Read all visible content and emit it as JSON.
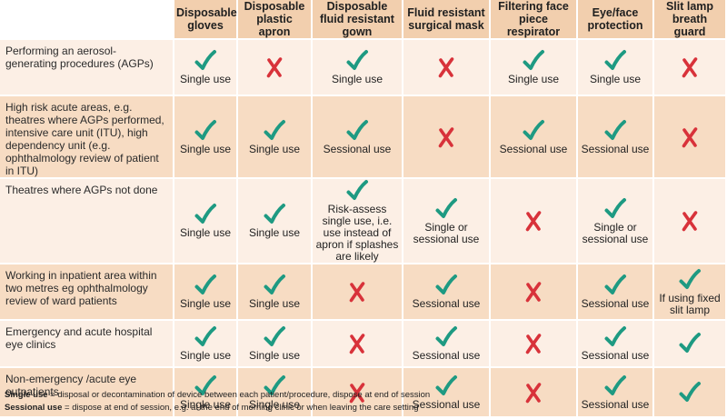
{
  "headers": [
    "Disposable gloves",
    "Disposable plastic apron",
    "Disposable fluid resistant gown",
    "Fluid resistant surgical mask",
    "Filtering face piece respirator",
    "Eye/face protection",
    "Slit lamp breath guard"
  ],
  "rows": [
    {
      "label": "Performing an aerosol-generating procedures (AGPs)",
      "cells": [
        {
          "mark": "tick",
          "note": "Single use"
        },
        {
          "mark": "cross",
          "note": ""
        },
        {
          "mark": "tick",
          "note": "Single use"
        },
        {
          "mark": "cross",
          "note": ""
        },
        {
          "mark": "tick",
          "note": "Single use"
        },
        {
          "mark": "tick",
          "note": "Single use"
        },
        {
          "mark": "cross",
          "note": ""
        }
      ]
    },
    {
      "label": "High risk acute areas, e.g. theatres where AGPs performed, intensive care unit (ITU), high dependency unit (e.g. ophthalmology review of patient in ITU)",
      "cells": [
        {
          "mark": "tick",
          "note": "Single use"
        },
        {
          "mark": "tick",
          "note": "Single use"
        },
        {
          "mark": "tick",
          "note": "Sessional use"
        },
        {
          "mark": "cross",
          "note": ""
        },
        {
          "mark": "tick",
          "note": "Sessional use"
        },
        {
          "mark": "tick",
          "note": "Sessional use"
        },
        {
          "mark": "cross",
          "note": ""
        }
      ]
    },
    {
      "label": "Theatres where AGPs not done",
      "cells": [
        {
          "mark": "tick",
          "note": "Single use"
        },
        {
          "mark": "tick",
          "note": "Single use"
        },
        {
          "mark": "tick",
          "note": "Risk-assess single use, i.e. use instead of apron if splashes are likely"
        },
        {
          "mark": "tick",
          "note": "Single or sessional use"
        },
        {
          "mark": "cross",
          "note": ""
        },
        {
          "mark": "tick",
          "note": "Single or sessional use"
        },
        {
          "mark": "cross",
          "note": ""
        }
      ]
    },
    {
      "label": "Working in inpatient area within two metres eg ophthalmology review of ward patients",
      "cells": [
        {
          "mark": "tick",
          "note": "Single use"
        },
        {
          "mark": "tick",
          "note": "Single use"
        },
        {
          "mark": "cross",
          "note": ""
        },
        {
          "mark": "tick",
          "note": "Sessional use"
        },
        {
          "mark": "cross",
          "note": ""
        },
        {
          "mark": "tick",
          "note": "Sessional use"
        },
        {
          "mark": "tick",
          "note": "If using fixed slit lamp"
        }
      ]
    },
    {
      "label": "Emergency and acute hospital eye clinics",
      "cells": [
        {
          "mark": "tick",
          "note": "Single use"
        },
        {
          "mark": "tick",
          "note": "Single use"
        },
        {
          "mark": "cross",
          "note": ""
        },
        {
          "mark": "tick",
          "note": "Sessional use"
        },
        {
          "mark": "cross",
          "note": ""
        },
        {
          "mark": "tick",
          "note": "Sessional use"
        },
        {
          "mark": "tick",
          "note": ""
        }
      ]
    },
    {
      "label": "Non-emergency /acute eye outpatients",
      "cells": [
        {
          "mark": "tick",
          "note": "Single use"
        },
        {
          "mark": "tick",
          "note": "Single use"
        },
        {
          "mark": "cross",
          "note": ""
        },
        {
          "mark": "tick",
          "note": "Sessional use"
        },
        {
          "mark": "cross",
          "note": ""
        },
        {
          "mark": "tick",
          "note": "Sessional use"
        },
        {
          "mark": "tick",
          "note": ""
        }
      ]
    }
  ],
  "legend": [
    {
      "term": "Single use",
      "definition": " = disposal or decontamination of device between each patient/procedure, dispose at end of session"
    },
    {
      "term": "Sessional use",
      "definition": " = dispose at end of session, e.g. at the end of morning clinic or when leaving the care setting"
    }
  ],
  "icons": {
    "tick": "check-icon",
    "cross": "cross-icon"
  },
  "colors": {
    "tick": "#1e9a82",
    "cross": "#d8323a",
    "header_bg": "#f2cfae",
    "row_light": "#fcefe5",
    "row_dark": "#f7dcc3"
  }
}
